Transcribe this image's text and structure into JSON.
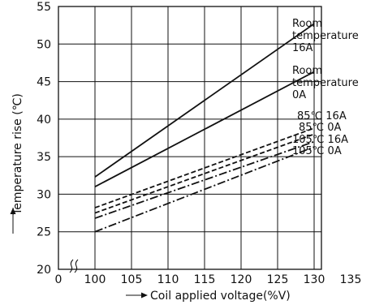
{
  "chart_data": {
    "type": "line",
    "xlabel": "Coil applied voltage(%V)",
    "ylabel": "Temperature rise (℃)",
    "xlim": [
      0,
      135
    ],
    "ylim": [
      20,
      55
    ],
    "x_ticks": [
      "0",
      "100",
      "105",
      "110",
      "115",
      "120",
      "125",
      "130",
      "135"
    ],
    "y_ticks": [
      "20",
      "25",
      "30",
      "35",
      "40",
      "45",
      "50",
      "55"
    ],
    "x_axis_break": true,
    "grid": true,
    "series": [
      {
        "name": "Room temperature 16A",
        "label_lines": [
          "Room",
          "temperature",
          "16A"
        ],
        "style": "solid",
        "x": [
          100,
          130
        ],
        "y": [
          32.3,
          52.7
        ]
      },
      {
        "name": "Room temperature 0A",
        "label_lines": [
          "Room",
          "temperature",
          "0A"
        ],
        "style": "solid",
        "x": [
          100,
          130
        ],
        "y": [
          31.0,
          46.3
        ]
      },
      {
        "name": "85℃ 16A",
        "label_lines": [
          "85℃ 16A"
        ],
        "style": "dashed",
        "x": [
          100,
          130
        ],
        "y": [
          28.2,
          38.8
        ]
      },
      {
        "name": "85℃ 0A",
        "label_lines": [
          "85℃ 0A"
        ],
        "style": "dashed",
        "x": [
          100,
          130
        ],
        "y": [
          27.5,
          38.0
        ]
      },
      {
        "name": "105℃ 16A",
        "label_lines": [
          "105℃ 16A"
        ],
        "style": "dashdot",
        "x": [
          100,
          130
        ],
        "y": [
          26.8,
          37.0
        ]
      },
      {
        "name": "105℃ 0A",
        "label_lines": [
          "105℃ 0A"
        ],
        "style": "dashdot",
        "x": [
          100,
          130
        ],
        "y": [
          25.0,
          36.3
        ]
      }
    ]
  }
}
